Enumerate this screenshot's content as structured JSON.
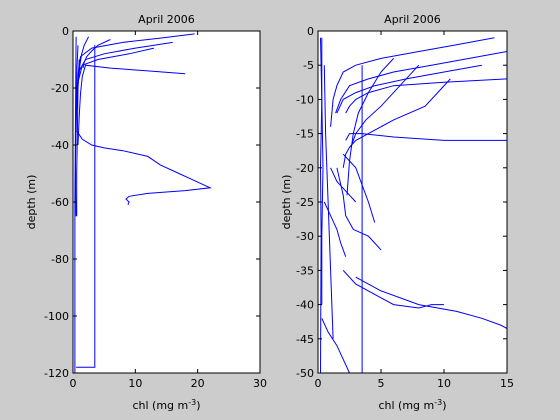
{
  "figure": {
    "background": "#cccccc",
    "line_color": "#0000ff"
  },
  "chart_data": [
    {
      "type": "line",
      "title": "April 2006",
      "xlabel": "chl (mg m^-3)",
      "ylabel": "depth (m)",
      "xlim": [
        0,
        30
      ],
      "ylim": [
        -120,
        0
      ],
      "xticks": [
        "0",
        "10",
        "20",
        "30"
      ],
      "yticks": [
        "0",
        "-20",
        "-40",
        "-60",
        "-80",
        "-100",
        "-120"
      ],
      "series": [
        {
          "x": [
            19.5,
            14,
            8,
            3,
            1.2,
            0.8,
            0.6,
            0.5
          ],
          "y": [
            -1,
            -2.5,
            -4,
            -6,
            -9,
            -15,
            -25,
            -35
          ]
        },
        {
          "x": [
            16,
            10,
            5,
            2,
            1,
            0.7,
            0.5
          ],
          "y": [
            -4,
            -6,
            -8,
            -10,
            -14,
            -22,
            -30
          ]
        },
        {
          "x": [
            13,
            9,
            4,
            1.5,
            0.8,
            0.6
          ],
          "y": [
            -6,
            -8,
            -10,
            -12,
            -18,
            -28
          ]
        },
        {
          "x": [
            18,
            12,
            6,
            2,
            1.5,
            1.2,
            1.0,
            0.8
          ],
          "y": [
            -15,
            -14,
            -13,
            -12,
            -16,
            -22,
            -30,
            -40
          ]
        },
        {
          "x": [
            0.6,
            1.5,
            3,
            5,
            8,
            12,
            14,
            17,
            19,
            22,
            18,
            12,
            9,
            8.5,
            9,
            8.8
          ],
          "y": [
            -35,
            -38,
            -40,
            -41,
            -42,
            -44,
            -47,
            -50,
            -52,
            -55,
            -56,
            -57,
            -58,
            -59,
            -60,
            -61
          ]
        },
        {
          "x": [
            0.8,
            0.6,
            0.5,
            0.4,
            0.4,
            0.5
          ],
          "y": [
            -5,
            -15,
            -30,
            -45,
            -55,
            -65
          ]
        },
        {
          "x": [
            1.0,
            0.8,
            0.7,
            0.6,
            0.6
          ],
          "y": [
            -10,
            -20,
            -35,
            -50,
            -65
          ]
        },
        {
          "x": [
            2.5,
            1.8,
            1.4,
            1.1,
            1.0
          ],
          "y": [
            -2,
            -5,
            -8,
            -12,
            -15
          ]
        },
        {
          "x": [
            6,
            4,
            3,
            2.2,
            1.8,
            1.6
          ],
          "y": [
            -3,
            -5,
            -7,
            -9,
            -11,
            -13
          ]
        },
        {
          "x": [
            3.5,
            3.5,
            3.5,
            0.5
          ],
          "y": [
            -5,
            -60,
            -118,
            -118
          ]
        },
        {
          "x": [
            0.5,
            0.4,
            0.3,
            0.3
          ],
          "y": [
            -2,
            -30,
            -60,
            -120
          ]
        }
      ]
    },
    {
      "type": "line",
      "title": "April 2006",
      "xlabel": "chl (mg m^-3)",
      "ylabel": "depth (m)",
      "xlim": [
        0,
        15
      ],
      "ylim": [
        -50,
        0
      ],
      "xticks": [
        "0",
        "5",
        "10",
        "15"
      ],
      "yticks": [
        "0",
        "-5",
        "-10",
        "-15",
        "-20",
        "-25",
        "-30",
        "-35",
        "-40",
        "-45",
        "-50"
      ],
      "series": [
        {
          "x": [
            14,
            11,
            8,
            5,
            3,
            2,
            1.5,
            1.2,
            1.0
          ],
          "y": [
            -1,
            -2,
            -3,
            -4,
            -5,
            -6,
            -8,
            -10,
            -14
          ]
        },
        {
          "x": [
            15,
            12,
            9,
            6,
            4,
            2.5,
            1.8,
            1.4
          ],
          "y": [
            -3,
            -4,
            -5,
            -6,
            -7,
            -8,
            -10,
            -12
          ]
        },
        {
          "x": [
            13,
            10,
            7,
            4.5,
            3,
            2,
            1.5
          ],
          "y": [
            -5,
            -6,
            -7,
            -8,
            -9,
            -10,
            -12
          ]
        },
        {
          "x": [
            15,
            10,
            6,
            4,
            3,
            2.5,
            2.2
          ],
          "y": [
            -7,
            -7.5,
            -8,
            -9,
            -10,
            -11,
            -12
          ]
        },
        {
          "x": [
            10.5,
            9.5,
            8.5,
            6,
            4,
            3,
            2.5,
            2.2,
            2.0
          ],
          "y": [
            -7,
            -9,
            -11,
            -13,
            -15,
            -16,
            -17,
            -18,
            -20
          ]
        },
        {
          "x": [
            8,
            6.5,
            5,
            3.8,
            3.0,
            2.6
          ],
          "y": [
            -5,
            -8,
            -11,
            -13,
            -15,
            -17
          ]
        },
        {
          "x": [
            15,
            10,
            6,
            3.5,
            2.5,
            2.2
          ],
          "y": [
            -16,
            -16,
            -15.5,
            -15,
            -15,
            -16
          ]
        },
        {
          "x": [
            2.0,
            3.0,
            3.4,
            4.0,
            4.5
          ],
          "y": [
            -18,
            -20,
            -22,
            -25,
            -28
          ]
        },
        {
          "x": [
            1.5,
            2.0,
            2.2,
            2.8,
            4.0,
            4.5,
            5.0
          ],
          "y": [
            -20,
            -24,
            -27,
            -29,
            -30,
            -31,
            -32
          ]
        },
        {
          "x": [
            2.0,
            3.0,
            4.0,
            5.0,
            6.0,
            8.0,
            9.0,
            10.0
          ],
          "y": [
            -35,
            -37,
            -38,
            -39,
            -40,
            -40.5,
            -40,
            -40
          ]
        },
        {
          "x": [
            3.0,
            5.0,
            8.0,
            11.0,
            13.0,
            14.5,
            15.0
          ],
          "y": [
            -36,
            -38,
            -40,
            -41,
            -42,
            -43,
            -43.5
          ]
        },
        {
          "x": [
            0.3,
            0.8,
            1.5,
            2.0,
            2.5
          ],
          "y": [
            -42,
            -44,
            -46,
            -48,
            -50
          ]
        },
        {
          "x": [
            0.5,
            0.6,
            0.8,
            1.0,
            1.2
          ],
          "y": [
            -5,
            -15,
            -25,
            -35,
            -45
          ]
        },
        {
          "x": [
            0.3,
            0.3,
            0.4,
            0.3,
            0.3
          ],
          "y": [
            -1,
            -10,
            -20,
            -30,
            -40
          ]
        },
        {
          "x": [
            0.2,
            0.3,
            0.2,
            0.25,
            0.2
          ],
          "y": [
            -1,
            -10,
            -20,
            -30,
            -50
          ]
        },
        {
          "x": [
            3.5,
            3.5,
            3.5,
            0.5
          ],
          "y": [
            -5,
            -30,
            -50,
            -50
          ]
        },
        {
          "x": [
            6,
            5,
            4,
            3.2,
            2.8,
            2.5,
            2.3
          ],
          "y": [
            -4,
            -6,
            -9,
            -12,
            -15,
            -19,
            -24
          ]
        },
        {
          "x": [
            1.0,
            1.5,
            2.0,
            2.5,
            3.0
          ],
          "y": [
            -20,
            -22,
            -23,
            -24,
            -25
          ]
        },
        {
          "x": [
            0.5,
            1.0,
            1.5,
            1.8,
            2.2
          ],
          "y": [
            -25,
            -27,
            -29,
            -31,
            -33
          ]
        }
      ]
    }
  ]
}
